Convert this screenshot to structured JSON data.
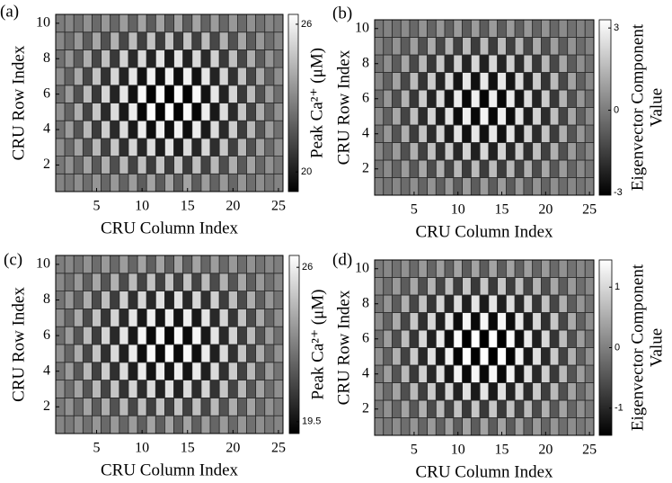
{
  "chart_data": [
    {
      "type": "heatmap",
      "panel_label": "(a)",
      "xlabel": "CRU Column Index",
      "ylabel": "CRU Row Index",
      "colorbar_label": [
        "Peak Ca²⁺ (μM)"
      ],
      "xlim": [
        0.5,
        25.5
      ],
      "xticks": [
        5,
        10,
        15,
        20,
        25
      ],
      "ylim": [
        0.5,
        10.5
      ],
      "yticks": [
        2,
        4,
        6,
        8,
        10
      ],
      "colormap": "gray",
      "zlim": [
        19.2,
        26.4
      ],
      "zticks": [
        20,
        26
      ],
      "z": [
        [
          22.9,
          22.6,
          23.2,
          22.3,
          23.4,
          22.1,
          23.5,
          22.0,
          23.6,
          21.8,
          23.8,
          21.8,
          23.8,
          21.8,
          23.8,
          21.8,
          23.6,
          22.0,
          23.5,
          22.1,
          23.4,
          22.3,
          23.2,
          22.6,
          22.9
        ],
        [
          22.6,
          23.3,
          22.1,
          23.8,
          21.7,
          24.1,
          21.4,
          24.4,
          21.1,
          24.6,
          20.9,
          24.7,
          20.9,
          24.7,
          20.9,
          24.6,
          21.1,
          24.4,
          21.4,
          24.1,
          21.7,
          23.8,
          22.1,
          23.3,
          22.6
        ],
        [
          23.2,
          22.2,
          23.8,
          21.5,
          24.4,
          21.0,
          24.8,
          20.5,
          25.2,
          20.3,
          25.4,
          20.0,
          25.6,
          20.0,
          25.4,
          20.3,
          25.2,
          20.5,
          24.8,
          21.0,
          24.4,
          21.5,
          23.8,
          22.2,
          23.2
        ],
        [
          22.4,
          23.6,
          21.6,
          24.4,
          20.9,
          25.0,
          20.4,
          25.4,
          19.9,
          25.9,
          19.6,
          26.0,
          19.6,
          26.0,
          19.6,
          25.9,
          19.9,
          25.4,
          20.4,
          25.0,
          20.9,
          24.4,
          21.6,
          23.6,
          22.4
        ],
        [
          23.3,
          22.0,
          24.1,
          21.1,
          24.8,
          20.4,
          25.4,
          19.9,
          25.9,
          19.4,
          26.3,
          19.3,
          26.4,
          19.3,
          26.3,
          19.4,
          25.9,
          19.9,
          25.4,
          20.4,
          24.8,
          21.1,
          24.1,
          22.0,
          23.3
        ],
        [
          22.3,
          23.6,
          21.5,
          24.5,
          20.8,
          25.2,
          20.2,
          25.7,
          19.7,
          26.2,
          19.3,
          26.3,
          19.2,
          26.3,
          19.3,
          26.2,
          19.7,
          25.7,
          20.2,
          25.2,
          20.8,
          24.5,
          21.5,
          23.6,
          22.3
        ],
        [
          23.2,
          22.0,
          24.0,
          21.2,
          24.7,
          20.6,
          25.2,
          20.2,
          25.7,
          19.7,
          26.0,
          19.6,
          26.0,
          19.6,
          26.0,
          19.7,
          25.7,
          20.2,
          25.2,
          20.6,
          24.7,
          21.2,
          24.0,
          22.0,
          23.2
        ],
        [
          22.4,
          23.4,
          21.8,
          24.1,
          21.2,
          24.6,
          20.8,
          25.1,
          20.4,
          25.3,
          20.2,
          25.6,
          20.0,
          25.6,
          20.2,
          25.3,
          20.4,
          25.1,
          20.8,
          24.6,
          21.2,
          24.1,
          21.8,
          23.4,
          22.4
        ],
        [
          23.0,
          22.3,
          23.5,
          21.8,
          23.9,
          21.5,
          24.2,
          21.2,
          24.5,
          21.0,
          24.7,
          20.9,
          24.7,
          20.9,
          24.7,
          21.0,
          24.5,
          21.2,
          24.2,
          21.5,
          23.9,
          21.8,
          23.5,
          22.3,
          23.0
        ],
        [
          22.7,
          23.0,
          22.4,
          23.3,
          22.2,
          23.5,
          22.1,
          23.6,
          22.0,
          23.8,
          21.8,
          23.8,
          21.8,
          23.8,
          21.8,
          23.8,
          22.0,
          23.6,
          22.1,
          23.5,
          22.2,
          23.3,
          22.4,
          23.0,
          22.7
        ]
      ]
    },
    {
      "type": "heatmap",
      "panel_label": "(b)",
      "xlabel": "CRU Column Index",
      "ylabel": "CRU Row Index",
      "colorbar_label": [
        "Eigenvector Component",
        "Value"
      ],
      "xlim": [
        0.5,
        25.5
      ],
      "xticks": [
        5,
        10,
        15,
        20,
        25
      ],
      "ylim": [
        0.5,
        10.5
      ],
      "yticks": [
        2,
        4,
        6,
        8,
        10
      ],
      "colormap": "gray",
      "zlim": [
        -3.1,
        3.3
      ],
      "zticks": [
        -3,
        0,
        3
      ],
      "z": [
        [
          0.1,
          -0.2,
          0.3,
          -0.4,
          0.5,
          -0.6,
          0.6,
          -0.7,
          0.7,
          -0.8,
          0.8,
          -0.8,
          0.8,
          -0.8,
          0.8,
          -0.8,
          0.7,
          -0.7,
          0.6,
          -0.6,
          0.5,
          -0.4,
          0.3,
          -0.2,
          0.1
        ],
        [
          -0.2,
          0.4,
          -0.6,
          0.8,
          -0.9,
          1.1,
          -1.2,
          1.3,
          -1.4,
          1.5,
          -1.6,
          1.6,
          -1.6,
          1.6,
          -1.6,
          1.5,
          -1.4,
          1.3,
          -1.2,
          1.1,
          -0.9,
          0.8,
          -0.6,
          0.4,
          -0.2
        ],
        [
          0.3,
          -0.5,
          0.8,
          -1.1,
          1.3,
          -1.5,
          1.7,
          -1.9,
          2.0,
          -2.1,
          2.2,
          -2.3,
          2.3,
          -2.3,
          2.2,
          -2.1,
          2.0,
          -1.9,
          1.7,
          -1.5,
          1.3,
          -1.1,
          0.8,
          -0.5,
          0.3
        ],
        [
          -0.3,
          0.7,
          -1.0,
          1.3,
          -1.6,
          1.8,
          -2.0,
          2.2,
          -2.4,
          2.6,
          -2.7,
          2.7,
          -2.7,
          2.7,
          -2.7,
          2.6,
          -2.4,
          2.2,
          -2.0,
          1.8,
          -1.6,
          1.3,
          -1.0,
          0.7,
          -0.3
        ],
        [
          0.4,
          -0.7,
          1.1,
          -1.4,
          1.7,
          -2.0,
          2.2,
          -2.4,
          2.6,
          -2.8,
          2.9,
          -2.9,
          3.0,
          -2.9,
          2.9,
          -2.8,
          2.6,
          -2.4,
          2.2,
          -2.0,
          1.7,
          -1.4,
          1.1,
          -0.7,
          0.4
        ],
        [
          -0.4,
          0.7,
          -1.1,
          1.4,
          -1.7,
          2.0,
          -2.2,
          2.4,
          -2.6,
          2.8,
          -2.9,
          2.9,
          -3.0,
          2.9,
          -2.9,
          2.8,
          -2.6,
          2.4,
          -2.2,
          2.0,
          -1.7,
          1.4,
          -1.1,
          0.7,
          -0.4
        ],
        [
          0.3,
          -0.7,
          1.0,
          -1.3,
          1.6,
          -1.8,
          2.0,
          -2.2,
          2.4,
          -2.6,
          2.7,
          -2.7,
          2.7,
          -2.7,
          2.7,
          -2.6,
          2.4,
          -2.2,
          2.0,
          -1.8,
          1.6,
          -1.3,
          1.0,
          -0.7,
          0.3
        ],
        [
          -0.3,
          0.5,
          -0.8,
          1.1,
          -1.3,
          1.5,
          -1.7,
          1.9,
          -2.0,
          2.1,
          -2.2,
          2.3,
          -2.3,
          2.3,
          -2.2,
          2.1,
          -2.0,
          1.9,
          -1.7,
          1.5,
          -1.3,
          1.1,
          -0.8,
          0.5,
          -0.3
        ],
        [
          0.2,
          -0.4,
          0.6,
          -0.8,
          0.9,
          -1.1,
          1.2,
          -1.3,
          1.4,
          -1.5,
          1.6,
          -1.6,
          1.6,
          -1.6,
          1.6,
          -1.5,
          1.4,
          -1.3,
          1.2,
          -1.1,
          0.9,
          -0.8,
          0.6,
          -0.4,
          0.2
        ],
        [
          -0.1,
          0.2,
          -0.3,
          0.4,
          -0.5,
          0.6,
          -0.6,
          0.7,
          -0.7,
          0.8,
          -0.8,
          0.8,
          -0.8,
          0.8,
          -0.8,
          0.8,
          -0.7,
          0.7,
          -0.6,
          0.6,
          -0.5,
          0.4,
          -0.3,
          0.2,
          -0.1
        ]
      ]
    },
    {
      "type": "heatmap",
      "panel_label": "(c)",
      "xlabel": "CRU Column Index",
      "ylabel": "CRU Row Index",
      "colorbar_label": [
        "Peak Ca²⁺ (μM)"
      ],
      "xlim": [
        0.5,
        25.5
      ],
      "xticks": [
        5,
        10,
        15,
        20,
        25
      ],
      "ylim": [
        0.5,
        10.5
      ],
      "yticks": [
        2,
        4,
        6,
        8,
        10
      ],
      "colormap": "gray",
      "zlim": [
        19.0,
        26.5
      ],
      "zticks": [
        19.5,
        26
      ],
      "z": [
        [
          22.9,
          22.6,
          23.2,
          22.3,
          23.4,
          22.1,
          23.5,
          22.0,
          23.6,
          21.8,
          23.8,
          21.8,
          23.8,
          21.8,
          23.8,
          21.8,
          23.6,
          22.0,
          23.5,
          22.1,
          23.4,
          22.3,
          23.2,
          22.6,
          22.9
        ],
        [
          22.6,
          23.3,
          22.1,
          23.8,
          21.7,
          24.1,
          21.4,
          24.4,
          21.1,
          24.6,
          20.9,
          24.7,
          20.9,
          24.7,
          20.9,
          24.6,
          21.1,
          24.4,
          21.4,
          24.1,
          21.7,
          23.8,
          22.1,
          23.3,
          22.6
        ],
        [
          23.2,
          22.2,
          23.8,
          21.5,
          24.4,
          21.0,
          24.8,
          20.5,
          25.2,
          20.3,
          25.4,
          20.0,
          25.6,
          20.0,
          25.4,
          20.3,
          25.2,
          20.5,
          24.8,
          21.0,
          24.4,
          21.5,
          23.8,
          22.2,
          23.2
        ],
        [
          22.4,
          23.6,
          21.6,
          24.4,
          20.9,
          25.0,
          20.4,
          25.4,
          19.9,
          25.9,
          19.6,
          26.0,
          19.6,
          26.0,
          19.6,
          25.9,
          19.9,
          25.4,
          20.4,
          25.0,
          20.9,
          24.4,
          21.6,
          23.6,
          22.4
        ],
        [
          23.3,
          22.0,
          24.1,
          21.1,
          24.8,
          20.4,
          25.4,
          19.9,
          25.9,
          19.4,
          26.3,
          19.3,
          26.4,
          19.3,
          26.3,
          19.4,
          25.9,
          19.9,
          25.4,
          20.4,
          24.8,
          21.1,
          24.1,
          22.0,
          23.3
        ],
        [
          22.3,
          23.6,
          21.5,
          24.5,
          20.8,
          25.2,
          20.2,
          25.7,
          19.7,
          26.2,
          19.3,
          26.3,
          19.2,
          26.3,
          19.3,
          26.2,
          19.7,
          25.7,
          20.2,
          25.2,
          20.8,
          24.5,
          21.5,
          23.6,
          22.3
        ],
        [
          23.2,
          22.0,
          24.0,
          21.2,
          24.7,
          20.6,
          25.2,
          20.2,
          25.7,
          19.7,
          26.0,
          19.6,
          26.0,
          19.6,
          26.0,
          19.7,
          25.7,
          20.2,
          25.2,
          20.6,
          24.7,
          21.2,
          24.0,
          22.0,
          23.2
        ],
        [
          22.4,
          23.4,
          21.8,
          24.1,
          21.2,
          24.6,
          20.8,
          25.1,
          20.4,
          25.3,
          20.2,
          25.6,
          20.0,
          25.6,
          20.2,
          25.3,
          20.4,
          25.1,
          20.8,
          24.6,
          21.2,
          24.1,
          21.8,
          23.4,
          22.4
        ],
        [
          23.0,
          22.3,
          23.5,
          21.8,
          23.9,
          21.5,
          24.2,
          21.2,
          24.5,
          21.0,
          24.7,
          20.9,
          24.7,
          20.9,
          24.7,
          21.0,
          24.5,
          21.2,
          24.2,
          21.5,
          23.9,
          21.8,
          23.5,
          22.3,
          23.0
        ],
        [
          22.7,
          23.0,
          22.4,
          23.3,
          22.2,
          23.5,
          22.1,
          23.6,
          22.0,
          23.8,
          21.8,
          23.8,
          21.8,
          23.8,
          21.8,
          23.8,
          22.0,
          23.6,
          22.1,
          23.5,
          22.2,
          23.3,
          22.4,
          23.0,
          22.7
        ]
      ]
    },
    {
      "type": "heatmap",
      "panel_label": "(d)",
      "xlabel": "CRU Column Index",
      "ylabel": "CRU Row Index",
      "colorbar_label": [
        "Eigenvector Component",
        "Value"
      ],
      "xlim": [
        0.5,
        25.5
      ],
      "xticks": [
        5,
        10,
        15,
        20,
        25
      ],
      "ylim": [
        0.5,
        10.5
      ],
      "yticks": [
        2,
        4,
        6,
        8,
        10
      ],
      "colormap": "gray",
      "zlim": [
        -1.45,
        1.45
      ],
      "zticks": [
        -1,
        0,
        1
      ],
      "z": [
        [
          0.05,
          -0.1,
          0.15,
          -0.2,
          0.25,
          -0.3,
          0.3,
          -0.35,
          0.35,
          -0.4,
          0.4,
          -0.4,
          0.4,
          -0.4,
          0.4,
          -0.4,
          0.35,
          -0.35,
          0.3,
          -0.3,
          0.25,
          -0.2,
          0.15,
          -0.1,
          0.05
        ],
        [
          -0.1,
          0.2,
          -0.3,
          0.4,
          -0.45,
          0.55,
          -0.6,
          0.65,
          -0.7,
          0.75,
          -0.8,
          0.8,
          -0.8,
          0.8,
          -0.8,
          0.75,
          -0.7,
          0.65,
          -0.6,
          0.55,
          -0.45,
          0.4,
          -0.3,
          0.2,
          -0.1
        ],
        [
          0.15,
          -0.25,
          0.4,
          -0.55,
          0.65,
          -0.75,
          0.85,
          -0.95,
          1.0,
          -1.05,
          1.1,
          -1.15,
          1.15,
          -1.15,
          1.1,
          -1.05,
          1.0,
          -0.95,
          0.85,
          -0.75,
          0.65,
          -0.55,
          0.4,
          -0.25,
          0.15
        ],
        [
          -0.15,
          0.35,
          -0.5,
          0.65,
          -0.8,
          0.9,
          -1.0,
          1.1,
          -1.2,
          1.3,
          -1.35,
          1.35,
          -1.35,
          1.35,
          -1.35,
          1.3,
          -1.2,
          1.1,
          -1.0,
          0.9,
          -0.8,
          0.65,
          -0.5,
          0.35,
          -0.15
        ],
        [
          0.2,
          -0.35,
          0.55,
          -0.7,
          0.85,
          -1.0,
          1.1,
          -1.2,
          1.3,
          -1.4,
          1.45,
          -1.45,
          1.5,
          -1.45,
          1.45,
          -1.4,
          1.3,
          -1.2,
          1.1,
          -1.0,
          0.85,
          -0.7,
          0.55,
          -0.35,
          0.2
        ],
        [
          -0.2,
          0.35,
          -0.55,
          0.7,
          -0.85,
          1.0,
          -1.1,
          1.2,
          -1.3,
          1.4,
          -1.45,
          1.45,
          -1.5,
          1.45,
          -1.45,
          1.4,
          -1.3,
          1.2,
          -1.1,
          1.0,
          -0.85,
          0.7,
          -0.55,
          0.35,
          -0.2
        ],
        [
          0.15,
          -0.35,
          0.5,
          -0.65,
          0.8,
          -0.9,
          1.0,
          -1.1,
          1.2,
          -1.3,
          1.35,
          -1.35,
          1.35,
          -1.35,
          1.35,
          -1.3,
          1.2,
          -1.1,
          1.0,
          -0.9,
          0.8,
          -0.65,
          0.5,
          -0.35,
          0.15
        ],
        [
          -0.15,
          0.25,
          -0.4,
          0.55,
          -0.65,
          0.75,
          -0.85,
          0.95,
          -1.0,
          1.05,
          -1.1,
          1.15,
          -1.15,
          1.15,
          -1.1,
          1.05,
          -1.0,
          0.95,
          -0.85,
          0.75,
          -0.65,
          0.55,
          -0.4,
          0.25,
          -0.15
        ],
        [
          0.1,
          -0.2,
          0.3,
          -0.4,
          0.45,
          -0.55,
          0.6,
          -0.65,
          0.7,
          -0.75,
          0.8,
          -0.8,
          0.8,
          -0.8,
          0.8,
          -0.75,
          0.7,
          -0.65,
          0.6,
          -0.55,
          0.45,
          -0.4,
          0.3,
          -0.2,
          0.1
        ],
        [
          -0.05,
          0.1,
          -0.15,
          0.2,
          -0.25,
          0.3,
          -0.3,
          0.35,
          -0.35,
          0.4,
          -0.4,
          0.4,
          -0.4,
          0.4,
          -0.4,
          0.4,
          -0.35,
          0.35,
          -0.3,
          0.3,
          -0.25,
          0.2,
          -0.15,
          0.1,
          -0.05
        ]
      ]
    }
  ]
}
